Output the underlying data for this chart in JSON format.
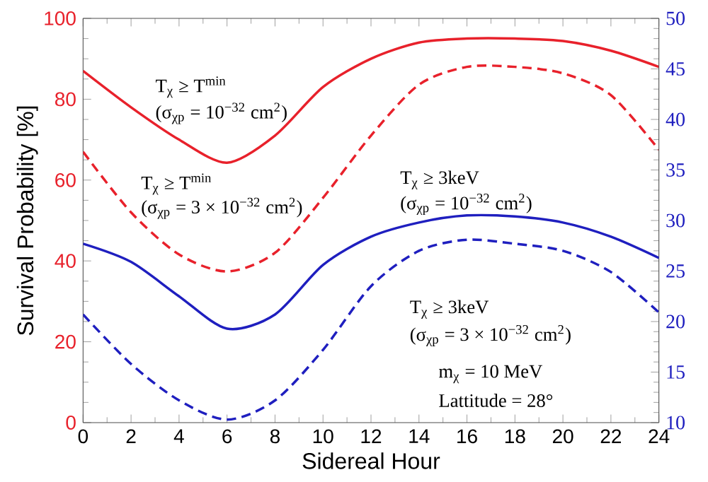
{
  "chart_data": {
    "type": "line",
    "xlabel": "Sidereal Hour",
    "ylabel": "Survival Probability [%]",
    "x": [
      0,
      2,
      4,
      6,
      8,
      10,
      12,
      14,
      16,
      18,
      20,
      22,
      24
    ],
    "xlim": [
      0,
      24
    ],
    "xticks": [
      0,
      2,
      4,
      6,
      8,
      10,
      12,
      14,
      16,
      18,
      20,
      22,
      24
    ],
    "ylim": [
      0,
      100
    ],
    "yticks": [
      0,
      20,
      40,
      60,
      80,
      100
    ],
    "y2lim": [
      10,
      50
    ],
    "y2ticks": [
      10,
      15,
      20,
      25,
      30,
      35,
      40,
      45,
      50
    ],
    "grid": false,
    "series": [
      {
        "color": "#e8212b",
        "line_style": "solid",
        "values": [
          87,
          78,
          70,
          64.3,
          71,
          83,
          90,
          94,
          95,
          95,
          94.4,
          92,
          88
        ]
      },
      {
        "color": "#e8212b",
        "line_style": "dashed",
        "values": [
          67,
          52,
          41.6,
          37.4,
          42,
          55.6,
          71,
          83.6,
          88,
          88,
          86.4,
          81,
          67.5
        ]
      },
      {
        "color": "#1f1fbf",
        "line_style": "solid",
        "axis": "y2",
        "values": [
          27.7,
          25.9,
          22.5,
          19.3,
          20.7,
          25.6,
          28.4,
          29.8,
          30.5,
          30.4,
          29.8,
          28.4,
          26.3
        ]
      },
      {
        "color": "#1f1fbf",
        "line_style": "dashed",
        "axis": "y2",
        "values": [
          20.7,
          15.8,
          12.2,
          10.3,
          12.2,
          17.2,
          23.5,
          27,
          28.1,
          27.7,
          27,
          24.9,
          20.9
        ]
      }
    ],
    "annotations": [
      "T$_{χ}$ ≥ T$^{min}$",
      "(σ$_{χp}$ = 10$^{−32}$ cm$^{2}$)",
      "T$_{χ}$ ≥ T$^{min}$",
      "(σ$_{χp}$ = 3 × 10$^{−32}$ cm$^{2}$)",
      "T$_{χ}$ ≥ 3keV",
      "(σ$_{χp}$ = 10$^{−32}$ cm$^{2}$)",
      "T$_{χ}$ ≥ 3keV",
      "(σ$_{χp}$ = 3 × 10$^{−32}$ cm$^{2}$)",
      "m$_{χ}$ = 10 MeV",
      "Lattitude = 28°"
    ]
  }
}
